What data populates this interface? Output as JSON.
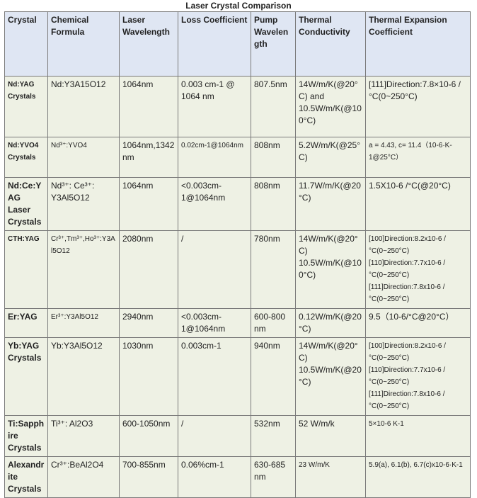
{
  "title": "Laser Crystal Comparison",
  "headers": [
    "Crystal",
    "Chemical Formula",
    "Laser Wavelength",
    "Loss Coefficient",
    "Pump Wavelength",
    "Thermal Conductivity",
    "Thermal Expansion Coefficient"
  ],
  "rows": [
    {
      "crystal": "Nd:YAG Crystals",
      "formula": "Nd:Y3A15O12",
      "wavelength": "1064nm",
      "loss": "0.003 cm-1 @ 1064 nm",
      "pump": "807.5nm",
      "conductivity": [
        "14W/m/K(@20°C) and 10.5W/m/K(@100°C)"
      ],
      "expansion": [
        "[111]Direction:7.8×10-6 /°C(0~250°C)"
      ]
    },
    {
      "crystal": "Nd:YVO4 Crystals",
      "formula": "Nd³⁺:YVO4",
      "wavelength": "1064nm,1342nm",
      "loss": "0.02cm-1@1064nm",
      "pump": "808nm",
      "conductivity": [
        "5.2W/m/K(@25°C)"
      ],
      "expansion": [
        "a = 4.43, c= 11.4（10-6·K-1@25°C）"
      ]
    },
    {
      "crystal": "Nd:Ce:YAG Laser Crystals",
      "formula": "Nd³⁺: Ce³⁺: Y3Al5O12",
      "wavelength": "1064nm",
      "loss": "<0.003cm-1@1064nm",
      "pump": "808nm",
      "conductivity": [
        "11.7W/m/K(@20°C)"
      ],
      "expansion": [
        "1.5X10-6 /°C(@20°C)"
      ]
    },
    {
      "crystal": "CTH:YAG",
      "formula": "Cr³⁺,Tm³⁺,Ho³⁺:Y3Al5O12",
      "wavelength": "2080nm",
      "loss": "/",
      "pump": "780nm",
      "conductivity": [
        "14W/m/K(@20°C)",
        "10.5W/m/K(@100°C)"
      ],
      "expansion": [
        "[100]Direction:8.2x10-6 /°C(0~250°C)",
        "[110]Direction:7.7x10-6 /°C(0~250°C)",
        "[111]Direction:7.8x10-6 /°C(0~250°C)"
      ]
    },
    {
      "crystal": "Er:YAG",
      "formula": "Er³⁺:Y3Al5O12",
      "wavelength": "2940nm",
      "loss": "<0.003cm-1@1064nm",
      "pump": "600-800 nm",
      "conductivity": [
        "0.12W/m/K(@20°C)"
      ],
      "expansion": [
        "9.5（10-6/°C@20°C）"
      ]
    },
    {
      "crystal": "Yb:YAG Crystals",
      "formula": "Yb:Y3Al5O12",
      "wavelength": "1030nm",
      "loss": "0.003cm-1",
      "pump": "940nm",
      "conductivity": [
        "14W/m/K(@20°C)",
        "10.5W/m/K(@20°C)"
      ],
      "expansion": [
        "[100]Direction:8.2x10-6 /°C(0~250°C)",
        "[110]Direction:7.7x10-6 /°C(0~250°C)",
        "[111]Direction:7.8x10-6 /°C(0~250°C)"
      ]
    },
    {
      "crystal": "Ti:Sapphire Crystals",
      "formula": "Ti³⁺: Al2O3",
      "wavelength": "600-1050nm",
      "loss": "/",
      "pump": "532nm",
      "conductivity": [
        "52 W/m/k"
      ],
      "expansion": [
        "5×10-6 K-1"
      ]
    },
    {
      "crystal": "Alexandrite Crystals",
      "formula": "Cr³⁺:BeAl2O4",
      "wavelength": "700-855nm",
      "loss": "0.06%cm-1",
      "pump": "630-685 nm",
      "conductivity": [
        "23 W/m/K"
      ],
      "expansion": [
        "5.9(a), 6.1(b), 6.7(c)x10-6·K-1"
      ]
    }
  ]
}
